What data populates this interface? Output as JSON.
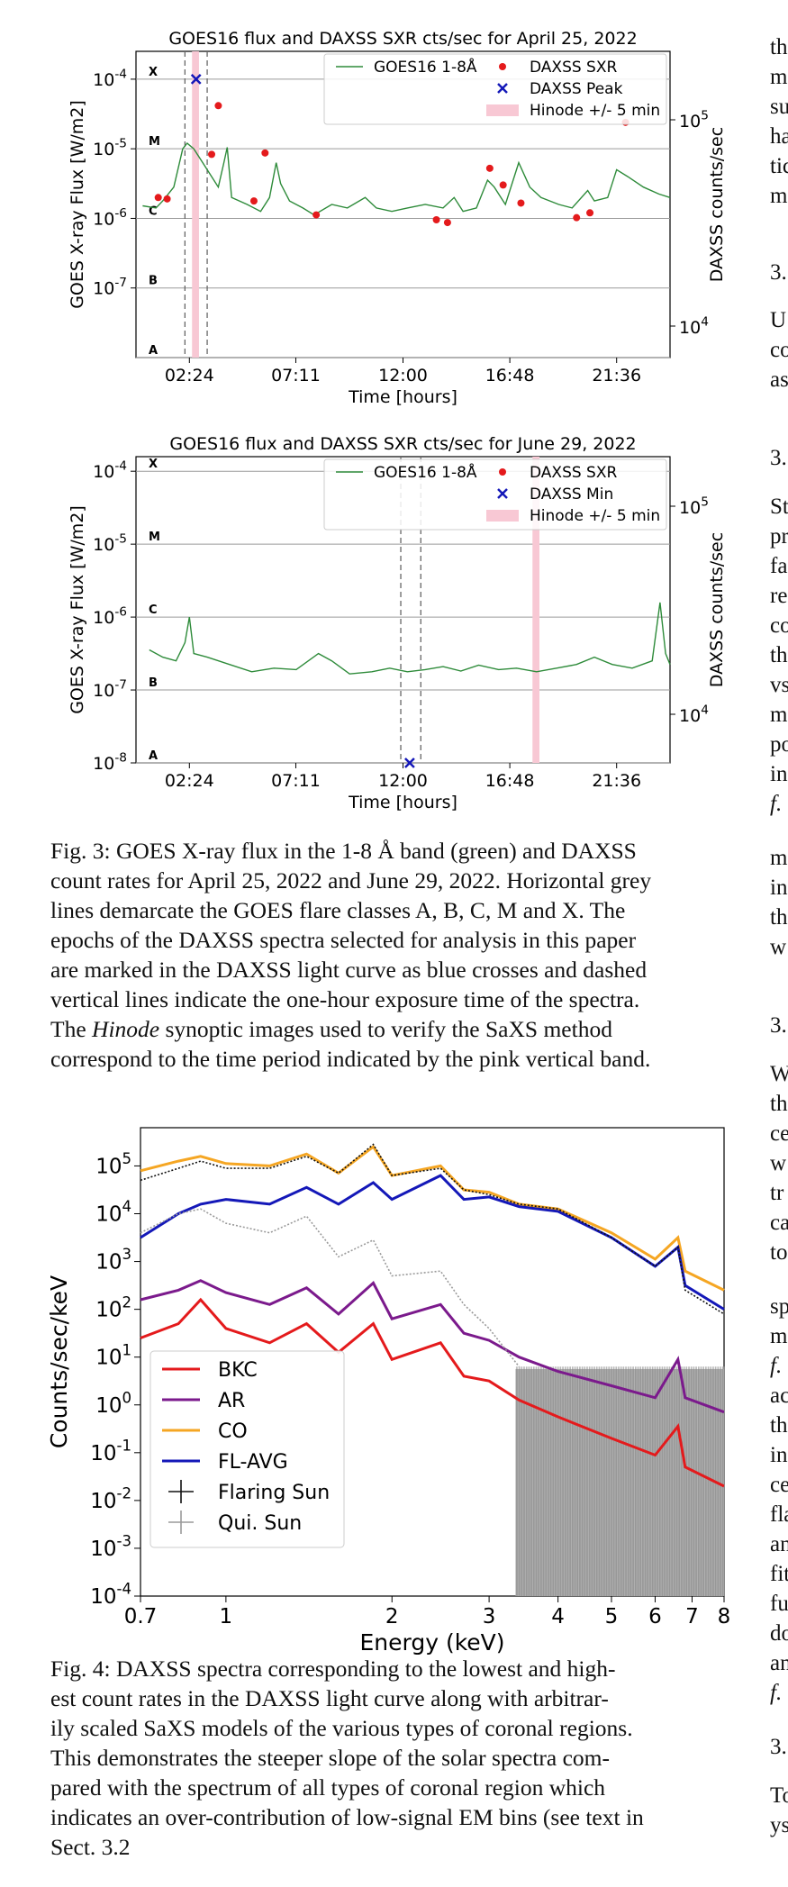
{
  "chart_data": [
    {
      "type": "line",
      "title": "GOES16 flux and DAXSS SXR cts/sec for April 25, 2022",
      "xlabel": "Time [hours]",
      "ylabel": "GOES X-ray Flux [W/m2]",
      "ylabel_right": "DAXSS counts/sec",
      "x_ticks": [
        "02:24",
        "07:11",
        "12:00",
        "16:48",
        "21:36"
      ],
      "y_ticks": [
        "10^-7",
        "10^-6",
        "10^-5",
        "10^-4"
      ],
      "y_right_ticks": [
        "10^4",
        "10^5"
      ],
      "flare_classes": [
        "A",
        "B",
        "C",
        "M",
        "X"
      ],
      "xlim_hours": [
        0,
        24
      ],
      "ylim_log10": [
        -8,
        -3.6
      ],
      "legend": [
        "GOES16 1-8Å",
        "DAXSS SXR",
        "DAXSS Peak",
        "Hinode +/- 5 min"
      ],
      "goes_log10_flux": [
        [
          0.3,
          -5.82
        ],
        [
          0.9,
          -5.85
        ],
        [
          1.2,
          -5.75
        ],
        [
          1.7,
          -5.55
        ],
        [
          2.1,
          -5.0
        ],
        [
          2.3,
          -4.92
        ],
        [
          2.6,
          -5.0
        ],
        [
          3.0,
          -5.2
        ],
        [
          3.4,
          -5.4
        ],
        [
          3.7,
          -5.55
        ],
        [
          3.95,
          -5.2
        ],
        [
          4.1,
          -4.98
        ],
        [
          4.3,
          -5.7
        ],
        [
          5.0,
          -5.8
        ],
        [
          5.6,
          -5.9
        ],
        [
          6.0,
          -5.7
        ],
        [
          6.3,
          -5.2
        ],
        [
          6.5,
          -5.5
        ],
        [
          6.9,
          -5.75
        ],
        [
          7.5,
          -5.85
        ],
        [
          8.0,
          -5.95
        ],
        [
          8.8,
          -5.8
        ],
        [
          9.5,
          -5.85
        ],
        [
          10.3,
          -5.7
        ],
        [
          10.8,
          -5.85
        ],
        [
          11.5,
          -5.9
        ],
        [
          12.2,
          -5.85
        ],
        [
          13.0,
          -5.8
        ],
        [
          13.8,
          -5.85
        ],
        [
          14.3,
          -5.7
        ],
        [
          14.7,
          -5.9
        ],
        [
          15.3,
          -5.85
        ],
        [
          15.8,
          -5.45
        ],
        [
          16.1,
          -5.55
        ],
        [
          16.6,
          -5.8
        ],
        [
          17.2,
          -5.2
        ],
        [
          17.7,
          -5.55
        ],
        [
          18.2,
          -5.7
        ],
        [
          19.0,
          -5.8
        ],
        [
          19.6,
          -5.85
        ],
        [
          20.3,
          -5.6
        ],
        [
          20.6,
          -5.75
        ],
        [
          21.2,
          -5.7
        ],
        [
          21.6,
          -5.3
        ],
        [
          22.1,
          -5.4
        ],
        [
          22.8,
          -5.55
        ],
        [
          23.5,
          -5.65
        ],
        [
          24.0,
          -5.7
        ]
      ],
      "daxss_sxr": [
        [
          1.0,
          -5.7
        ],
        [
          1.4,
          -5.72
        ],
        [
          3.4,
          -5.08
        ],
        [
          3.7,
          -4.38
        ],
        [
          5.3,
          -5.75
        ],
        [
          5.8,
          -5.06
        ],
        [
          8.1,
          -5.95
        ],
        [
          13.5,
          -6.02
        ],
        [
          14.0,
          -6.06
        ],
        [
          15.9,
          -5.28
        ],
        [
          16.5,
          -5.52
        ],
        [
          17.3,
          -5.78
        ],
        [
          19.8,
          -5.99
        ],
        [
          20.4,
          -5.92
        ],
        [
          22.0,
          -4.62
        ]
      ],
      "daxss_peak": [
        [
          2.7,
          -4.0
        ]
      ],
      "exposure_lines_hours": [
        2.2,
        3.2
      ],
      "hinode_band_hours": [
        2.6,
        2.75
      ]
    },
    {
      "type": "line",
      "title": "GOES16 flux and DAXSS SXR cts/sec for June 29, 2022",
      "xlabel": "Time [hours]",
      "ylabel": "GOES X-ray Flux [W/m2]",
      "ylabel_right": "DAXSS counts/sec",
      "x_ticks": [
        "02:24",
        "07:11",
        "12:00",
        "16:48",
        "21:36"
      ],
      "y_ticks": [
        "10^-8",
        "10^-7",
        "10^-6",
        "10^-5",
        "10^-4"
      ],
      "y_right_ticks": [
        "10^4",
        "10^5"
      ],
      "flare_classes": [
        "A",
        "B",
        "C",
        "M",
        "X"
      ],
      "xlim_hours": [
        0,
        24
      ],
      "ylim_log10": [
        -8.0,
        -3.8
      ],
      "legend": [
        "GOES16 1-8Å",
        "DAXSS SXR",
        "DAXSS Min",
        "Hinode +/- 5 min"
      ],
      "goes_log10_flux": [
        [
          0.6,
          -6.45
        ],
        [
          1.2,
          -6.55
        ],
        [
          1.8,
          -6.6
        ],
        [
          2.2,
          -6.35
        ],
        [
          2.4,
          -6.0
        ],
        [
          2.6,
          -6.5
        ],
        [
          3.2,
          -6.55
        ],
        [
          4.2,
          -6.65
        ],
        [
          5.2,
          -6.75
        ],
        [
          6.2,
          -6.7
        ],
        [
          7.2,
          -6.72
        ],
        [
          8.2,
          -6.5
        ],
        [
          8.8,
          -6.6
        ],
        [
          9.6,
          -6.78
        ],
        [
          10.6,
          -6.75
        ],
        [
          11.4,
          -6.7
        ],
        [
          12.2,
          -6.75
        ],
        [
          13.0,
          -6.72
        ],
        [
          13.8,
          -6.68
        ],
        [
          14.6,
          -6.74
        ],
        [
          15.4,
          -6.66
        ],
        [
          16.3,
          -6.72
        ],
        [
          17.1,
          -6.7
        ],
        [
          18.0,
          -6.75
        ],
        [
          18.9,
          -6.7
        ],
        [
          19.8,
          -6.65
        ],
        [
          20.6,
          -6.55
        ],
        [
          21.4,
          -6.65
        ],
        [
          22.3,
          -6.7
        ],
        [
          23.2,
          -6.6
        ],
        [
          23.55,
          -5.8
        ],
        [
          23.8,
          -6.5
        ],
        [
          24.0,
          -6.65
        ]
      ],
      "daxss_min": [
        [
          12.3,
          -8.0
        ]
      ],
      "exposure_lines_hours": [
        11.9,
        12.8
      ],
      "hinode_band_hours": [
        17.9,
        18.05
      ]
    },
    {
      "type": "line",
      "xlabel": "Energy (keV)",
      "ylabel": "Counts/sec/keV",
      "x_log": true,
      "y_log": true,
      "xlim": [
        0.7,
        8
      ],
      "ylim_log10": [
        -4,
        5.8
      ],
      "x_ticks": [
        "0.7",
        "1",
        "2",
        "3",
        "4",
        "5",
        "6",
        "7",
        "8"
      ],
      "y_ticks": [
        "10^-4",
        "10^-3",
        "10^-2",
        "10^-1",
        "10^0",
        "10^1",
        "10^2",
        "10^3",
        "10^4",
        "10^5"
      ],
      "series": [
        {
          "name": "BKC",
          "color": "#e41a1c",
          "log10_points": [
            [
              0.7,
              1.4
            ],
            [
              0.82,
              1.7
            ],
            [
              0.9,
              2.2
            ],
            [
              1.0,
              1.6
            ],
            [
              1.2,
              1.3
            ],
            [
              1.4,
              1.7
            ],
            [
              1.6,
              1.1
            ],
            [
              1.85,
              1.7
            ],
            [
              2.0,
              0.95
            ],
            [
              2.45,
              1.3
            ],
            [
              2.7,
              0.6
            ],
            [
              3.0,
              0.5
            ],
            [
              3.4,
              0.1
            ],
            [
              4.0,
              -0.25
            ],
            [
              5.0,
              -0.7
            ],
            [
              6.0,
              -1.05
            ],
            [
              6.6,
              -0.45
            ],
            [
              6.8,
              -1.3
            ],
            [
              8.0,
              -1.7
            ]
          ]
        },
        {
          "name": "AR",
          "color": "#7b1a8c",
          "log10_points": [
            [
              0.7,
              2.2
            ],
            [
              0.82,
              2.4
            ],
            [
              0.9,
              2.6
            ],
            [
              1.0,
              2.35
            ],
            [
              1.2,
              2.1
            ],
            [
              1.4,
              2.45
            ],
            [
              1.6,
              1.9
            ],
            [
              1.85,
              2.55
            ],
            [
              2.0,
              1.8
            ],
            [
              2.45,
              2.1
            ],
            [
              2.7,
              1.5
            ],
            [
              3.0,
              1.35
            ],
            [
              3.4,
              1.0
            ],
            [
              4.0,
              0.7
            ],
            [
              5.0,
              0.4
            ],
            [
              6.0,
              0.15
            ],
            [
              6.6,
              0.95
            ],
            [
              6.8,
              0.15
            ],
            [
              8.0,
              -0.15
            ]
          ]
        },
        {
          "name": "CO",
          "color": "#f5a623",
          "log10_points": [
            [
              0.7,
              4.9
            ],
            [
              0.82,
              5.1
            ],
            [
              0.9,
              5.2
            ],
            [
              1.0,
              5.05
            ],
            [
              1.2,
              5.0
            ],
            [
              1.4,
              5.25
            ],
            [
              1.6,
              4.85
            ],
            [
              1.85,
              5.4
            ],
            [
              2.0,
              4.8
            ],
            [
              2.45,
              5.0
            ],
            [
              2.7,
              4.5
            ],
            [
              3.0,
              4.45
            ],
            [
              3.4,
              4.2
            ],
            [
              4.0,
              4.1
            ],
            [
              5.0,
              3.6
            ],
            [
              6.0,
              3.05
            ],
            [
              6.6,
              3.5
            ],
            [
              6.8,
              2.8
            ],
            [
              8.0,
              2.4
            ]
          ]
        },
        {
          "name": "FL-AVG",
          "color": "#1418b8",
          "log10_points": [
            [
              0.7,
              3.5
            ],
            [
              0.82,
              4.0
            ],
            [
              0.9,
              4.2
            ],
            [
              1.0,
              4.3
            ],
            [
              1.2,
              4.2
            ],
            [
              1.4,
              4.55
            ],
            [
              1.6,
              4.2
            ],
            [
              1.85,
              4.65
            ],
            [
              2.0,
              4.3
            ],
            [
              2.45,
              4.8
            ],
            [
              2.7,
              4.3
            ],
            [
              3.0,
              4.35
            ],
            [
              3.4,
              4.15
            ],
            [
              4.0,
              4.05
            ],
            [
              5.0,
              3.5
            ],
            [
              6.0,
              2.9
            ],
            [
              6.6,
              3.3
            ],
            [
              6.8,
              2.5
            ],
            [
              8.0,
              2.0
            ]
          ]
        },
        {
          "name": "Flaring Sun",
          "color": "#111111",
          "log10_points": [
            [
              0.7,
              4.7
            ],
            [
              0.82,
              4.95
            ],
            [
              0.9,
              5.1
            ],
            [
              1.0,
              4.95
            ],
            [
              1.2,
              4.95
            ],
            [
              1.4,
              5.2
            ],
            [
              1.6,
              4.85
            ],
            [
              1.85,
              5.45
            ],
            [
              2.0,
              4.8
            ],
            [
              2.45,
              4.95
            ],
            [
              2.7,
              4.5
            ],
            [
              3.0,
              4.4
            ],
            [
              3.4,
              4.2
            ],
            [
              4.0,
              4.1
            ],
            [
              5.0,
              3.5
            ],
            [
              6.0,
              2.9
            ],
            [
              6.6,
              3.3
            ],
            [
              6.8,
              2.4
            ],
            [
              8.0,
              1.9
            ]
          ]
        },
        {
          "name": "Qui. Sun",
          "color": "#9a9a9a",
          "log10_points": [
            [
              0.7,
              3.6
            ],
            [
              0.82,
              4.0
            ],
            [
              0.9,
              4.1
            ],
            [
              1.0,
              3.8
            ],
            [
              1.2,
              3.6
            ],
            [
              1.4,
              3.95
            ],
            [
              1.6,
              3.1
            ],
            [
              1.85,
              3.45
            ],
            [
              2.0,
              2.7
            ],
            [
              2.45,
              2.8
            ],
            [
              2.7,
              2.1
            ],
            [
              3.0,
              1.6
            ],
            [
              3.4,
              0.8
            ]
          ]
        }
      ]
    }
  ],
  "fig3_caption": {
    "lines": [
      "Fig. 3: GOES X-ray flux in the 1-8 Å band (green) and DAXSS",
      "count rates for April 25, 2022 and June 29, 2022. Horizontal grey",
      "lines demarcate the GOES flare classes A, B, C, M and X. The",
      "epochs of the DAXSS spectra selected for analysis in this paper",
      "are marked in the DAXSS light curve as blue crosses and dashed",
      "vertical lines indicate the one-hour exposure time of the spectra."
    ],
    "last_pre": "The ",
    "last_italic": "Hinode",
    "last_post": " synoptic images used to verify the SaXS method",
    "final": "correspond to the time period indicated by the pink vertical band."
  },
  "fig4_caption": {
    "lines": [
      "Fig. 4: DAXSS spectra corresponding to the lowest and high-",
      "est count rates in the DAXSS light curve along with arbitrar-",
      "ily scaled SaXS models of the various types of coronal regions.",
      "This demonstrates the steeper slope of the solar spectra com-",
      "pared with the spectrum of all types of coronal region which",
      "indicates an over-contribution of low-signal EM bins (see text in",
      "Sect. 3.2"
    ]
  },
  "right_column": [
    {
      "y": 62,
      "text": "th"
    },
    {
      "y": 95,
      "text": "m"
    },
    {
      "y": 128,
      "text": "su"
    },
    {
      "y": 161,
      "text": "ha"
    },
    {
      "y": 194,
      "text": "tic"
    },
    {
      "y": 227,
      "text": "m"
    },
    {
      "y": 312,
      "text": "3."
    },
    {
      "y": 365,
      "text": "U"
    },
    {
      "y": 398,
      "text": "co"
    },
    {
      "y": 431,
      "text": "as"
    },
    {
      "y": 518,
      "text": "3."
    },
    {
      "y": 572,
      "text": "St"
    },
    {
      "y": 605,
      "text": "pr"
    },
    {
      "y": 638,
      "text": "fa"
    },
    {
      "y": 671,
      "text": "re"
    },
    {
      "y": 704,
      "text": "co"
    },
    {
      "y": 737,
      "text": "th"
    },
    {
      "y": 770,
      "text": "vs"
    },
    {
      "y": 803,
      "text": "m"
    },
    {
      "y": 836,
      "text": "po"
    },
    {
      "y": 869,
      "text": "in"
    },
    {
      "y": 902,
      "text": "f."
    },
    {
      "y": 962,
      "text": "m"
    },
    {
      "y": 995,
      "text": "in"
    },
    {
      "y": 1028,
      "text": "th"
    },
    {
      "y": 1061,
      "text": "w"
    },
    {
      "y": 1148,
      "text": "3."
    },
    {
      "y": 1202,
      "text": "W"
    },
    {
      "y": 1235,
      "text": "th"
    },
    {
      "y": 1268,
      "text": "ce"
    },
    {
      "y": 1301,
      "text": "w"
    },
    {
      "y": 1334,
      "text": "tr"
    },
    {
      "y": 1367,
      "text": "ca"
    },
    {
      "y": 1400,
      "text": "to"
    },
    {
      "y": 1460,
      "text": "sp"
    },
    {
      "y": 1493,
      "text": "m"
    },
    {
      "y": 1526,
      "text": "f."
    },
    {
      "y": 1559,
      "text": "ac"
    },
    {
      "y": 1592,
      "text": "th"
    },
    {
      "y": 1625,
      "text": "in"
    },
    {
      "y": 1658,
      "text": "ce"
    },
    {
      "y": 1691,
      "text": "fla"
    },
    {
      "y": 1724,
      "text": "an"
    },
    {
      "y": 1757,
      "text": "fit"
    },
    {
      "y": 1790,
      "text": "fu"
    },
    {
      "y": 1823,
      "text": "do"
    },
    {
      "y": 1856,
      "text": "an"
    },
    {
      "y": 1889,
      "text": "f."
    },
    {
      "y": 1949,
      "text": "3."
    },
    {
      "y": 2003,
      "text": "To"
    },
    {
      "y": 2036,
      "text": "ys"
    }
  ],
  "colors": {
    "goes": "#2e8b3a",
    "daxss": "#e41a1c",
    "peak": "#1418b8",
    "hinode": "#f8c8d4",
    "class_line": "#9a9a9a"
  }
}
